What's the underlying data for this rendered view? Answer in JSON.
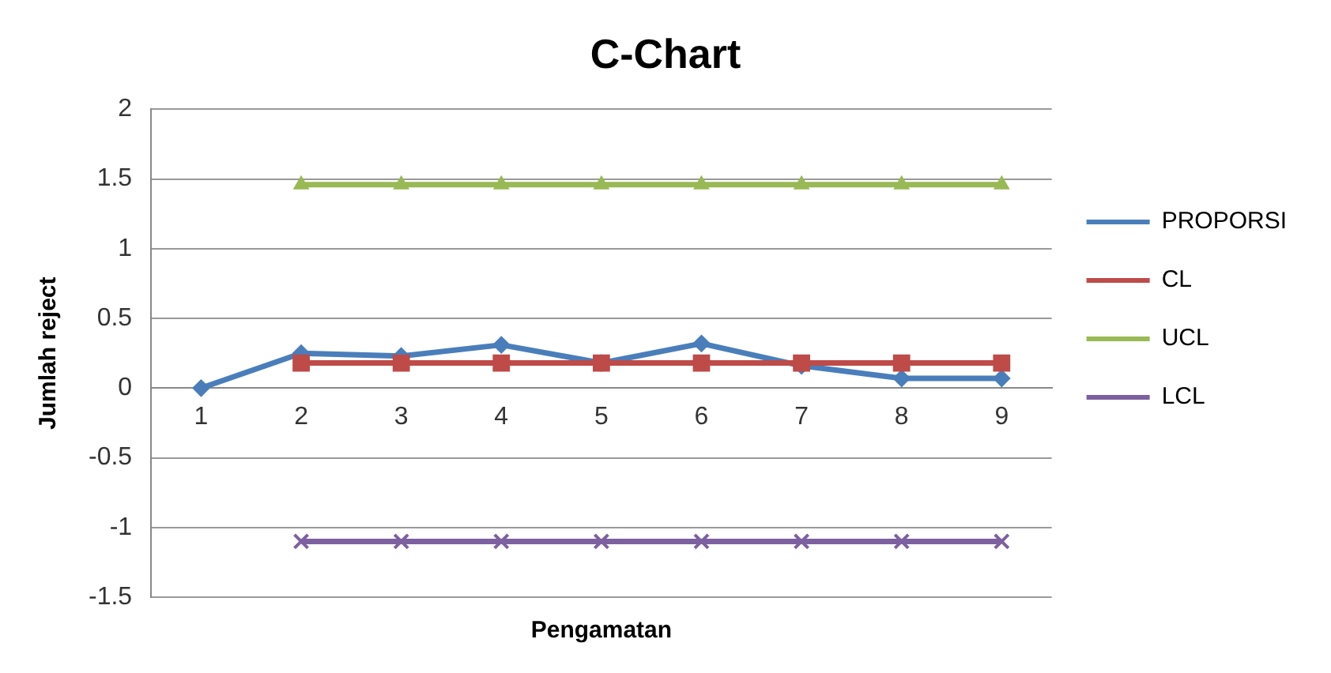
{
  "chart_data": {
    "type": "line",
    "title": "C-Chart",
    "xlabel": "Pengamatan",
    "ylabel": "Jumlah reject",
    "categories": [
      "1",
      "2",
      "3",
      "4",
      "5",
      "6",
      "7",
      "8",
      "9"
    ],
    "series": [
      {
        "name": "PROPORSI",
        "color": "#4a7ebb",
        "marker": "diamond",
        "values": [
          0,
          0.25,
          0.23,
          0.31,
          0.18,
          0.32,
          0.16,
          0.07,
          0.07
        ]
      },
      {
        "name": "CL",
        "color": "#be4b48",
        "marker": "square",
        "values": [
          null,
          0.18,
          0.18,
          0.18,
          0.18,
          0.18,
          0.18,
          0.18,
          0.18
        ]
      },
      {
        "name": "UCL",
        "color": "#98b954",
        "marker": "triangle",
        "values": [
          null,
          1.46,
          1.46,
          1.46,
          1.46,
          1.46,
          1.46,
          1.46,
          1.46
        ]
      },
      {
        "name": "LCL",
        "color": "#7d60a0",
        "marker": "cross",
        "values": [
          null,
          -1.1,
          -1.1,
          -1.1,
          -1.1,
          -1.1,
          -1.1,
          -1.1,
          -1.1
        ]
      }
    ],
    "ylim": [
      -1.5,
      2
    ],
    "yticks": [
      -1.5,
      -1,
      -0.5,
      0,
      0.5,
      1,
      1.5,
      2
    ],
    "grid": "y",
    "legend": "right",
    "line_style": "solid"
  }
}
